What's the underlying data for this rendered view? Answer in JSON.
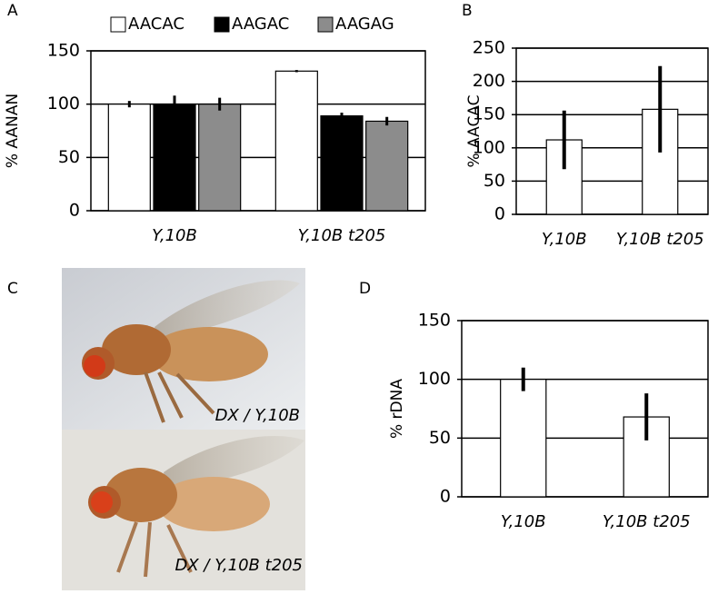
{
  "chart_data": [
    {
      "type": "bar",
      "panel": "A",
      "y_label": "% AANAN",
      "categories": [
        "Y,10B",
        "Y,10B t205"
      ],
      "series": [
        {
          "name": "AACAC",
          "color": "#ffffff",
          "values": [
            100,
            131
          ],
          "errors": [
            3,
            1
          ]
        },
        {
          "name": "AAGAC",
          "color": "#000000",
          "values": [
            100,
            89
          ],
          "errors": [
            8,
            3
          ]
        },
        {
          "name": "AAGAG",
          "color": "#8c8c8c",
          "values": [
            100,
            84
          ],
          "errors": [
            6,
            4
          ]
        }
      ],
      "ylim": [
        0,
        150
      ],
      "yticks": [
        0,
        50,
        100,
        150
      ],
      "grid": true,
      "legend": "top"
    },
    {
      "type": "bar",
      "panel": "B",
      "y_label": "% AACAC",
      "categories": [
        "Y,10B",
        "Y,10B t205"
      ],
      "color": "#ffffff",
      "values": [
        112,
        158
      ],
      "errors": [
        44,
        65
      ],
      "ylim": [
        0,
        250
      ],
      "yticks": [
        0,
        50,
        100,
        150,
        200,
        250
      ],
      "grid": true
    },
    {
      "type": "bar",
      "panel": "D",
      "y_label": "% rDNA",
      "categories": [
        "Y,10B",
        "Y,10B t205"
      ],
      "color": "#ffffff",
      "values": [
        100,
        68
      ],
      "errors": [
        10,
        20
      ],
      "ylim": [
        0,
        150
      ],
      "yticks": [
        0,
        50,
        100,
        150
      ],
      "grid": true
    }
  ],
  "photo": {
    "panel": "C",
    "captions": [
      "DX / Y,10B",
      "DX / Y,10B t205"
    ]
  }
}
